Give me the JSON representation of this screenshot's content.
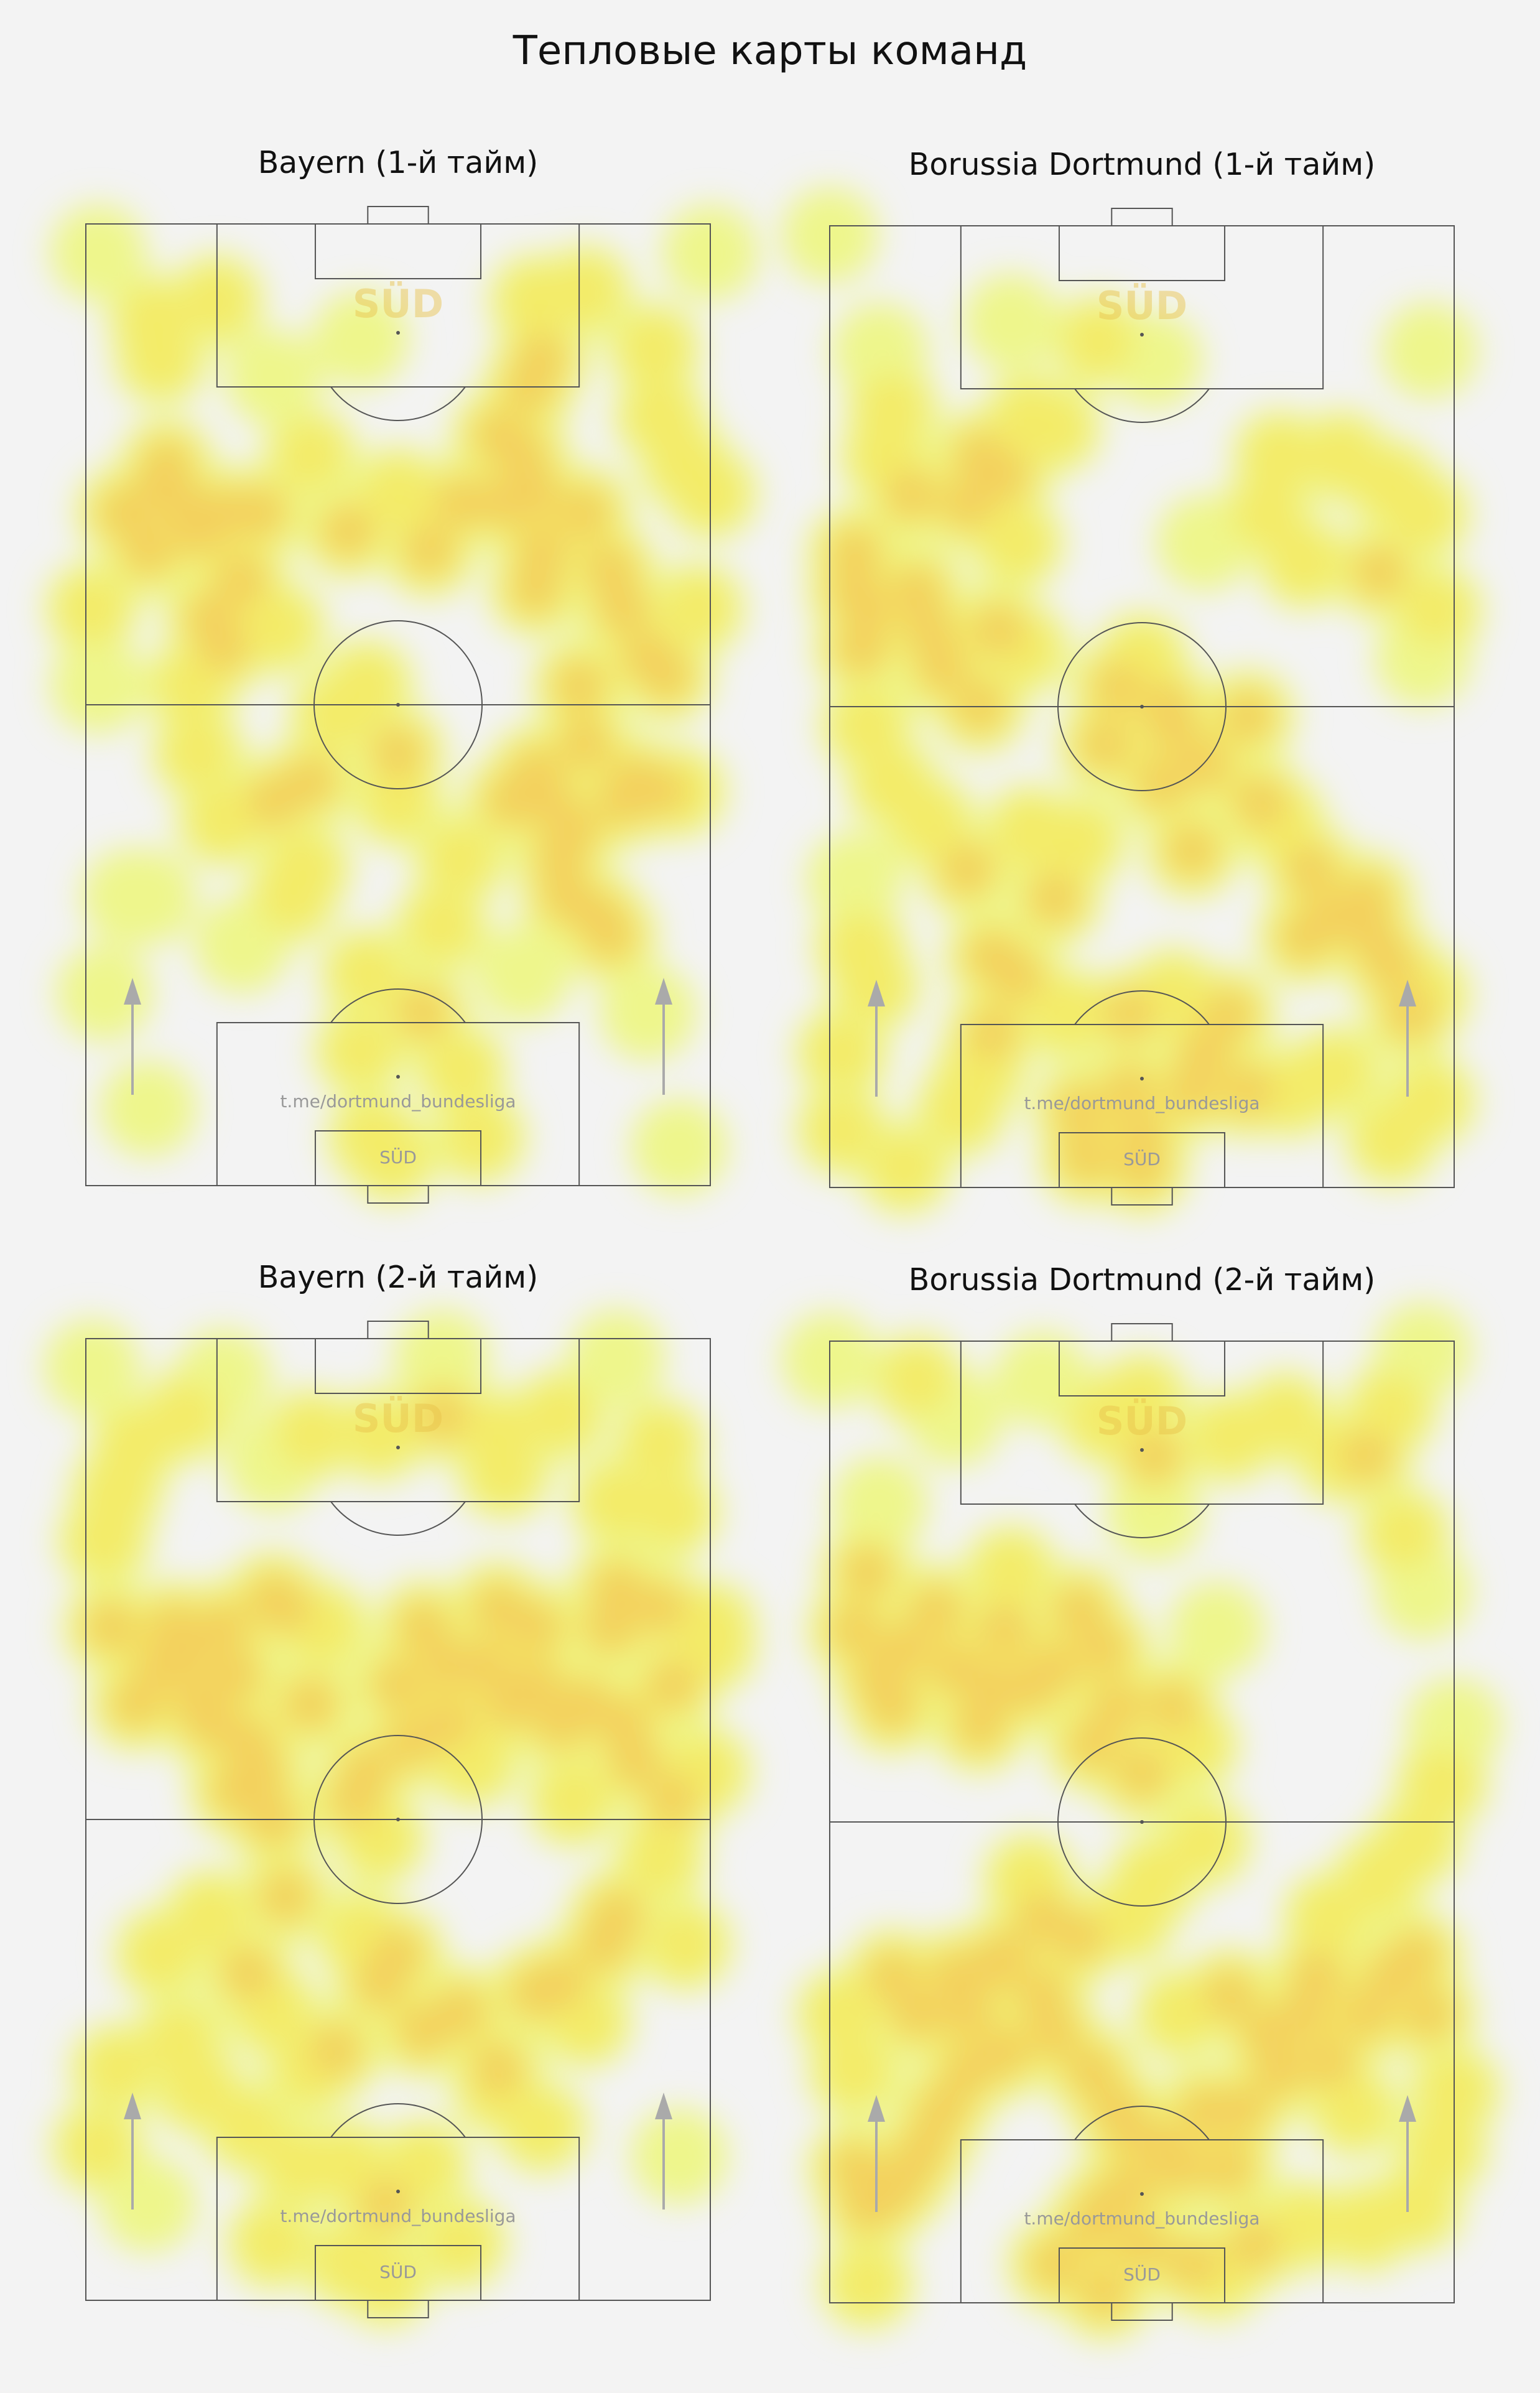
{
  "title": "Тепловые карты команд",
  "watermark": {
    "handle": "t.me/dortmund_bundesliga",
    "logo_text": "SÜD"
  },
  "colors": {
    "background": "#f3f3f3",
    "pitch_lines": "#555555",
    "heat_low": "#eef77a",
    "heat_mid": "#f7e24a",
    "heat_high": "#f3a04a",
    "arrow": "#aaaaaa",
    "watermark_text": "#999999"
  },
  "chart_data": [
    {
      "type": "heatmap",
      "title": "Bayern (1-й тайм)",
      "xlim": [
        0,
        100
      ],
      "ylim": [
        0,
        100
      ],
      "attack_direction": "up",
      "points": [
        [
          2,
          97
        ],
        [
          100,
          97
        ],
        [
          11,
          90
        ],
        [
          12,
          86
        ],
        [
          21,
          92
        ],
        [
          30,
          84
        ],
        [
          44,
          88
        ],
        [
          72,
          92
        ],
        [
          80,
          93
        ],
        [
          73,
          86
        ],
        [
          91,
          87
        ],
        [
          92,
          80
        ],
        [
          71,
          83
        ],
        [
          96,
          75
        ],
        [
          100,
          72
        ],
        [
          98,
          60
        ],
        [
          1,
          60
        ],
        [
          2,
          52
        ],
        [
          6,
          70
        ],
        [
          10,
          66
        ],
        [
          12,
          73
        ],
        [
          13,
          75
        ],
        [
          15,
          71
        ],
        [
          18,
          68
        ],
        [
          22,
          70
        ],
        [
          25,
          63
        ],
        [
          20,
          59
        ],
        [
          22,
          56
        ],
        [
          31,
          58
        ],
        [
          28,
          70
        ],
        [
          36,
          76
        ],
        [
          42,
          68
        ],
        [
          50,
          72
        ],
        [
          55,
          66
        ],
        [
          60,
          71
        ],
        [
          67,
          71
        ],
        [
          66,
          78
        ],
        [
          70,
          76
        ],
        [
          72,
          72
        ],
        [
          72,
          62
        ],
        [
          73,
          66
        ],
        [
          80,
          70
        ],
        [
          84,
          64
        ],
        [
          86,
          60
        ],
        [
          90,
          55
        ],
        [
          93,
          53
        ],
        [
          79,
          52
        ],
        [
          80,
          46
        ],
        [
          68,
          40
        ],
        [
          72,
          43
        ],
        [
          74,
          40
        ],
        [
          76,
          34
        ],
        [
          78,
          37
        ],
        [
          86,
          40
        ],
        [
          88,
          42
        ],
        [
          92,
          41
        ],
        [
          95,
          41
        ],
        [
          77,
          30
        ],
        [
          82,
          28
        ],
        [
          70,
          22
        ],
        [
          60,
          34
        ],
        [
          57,
          27
        ],
        [
          50,
          40
        ],
        [
          50,
          45
        ],
        [
          45,
          52
        ],
        [
          40,
          49
        ],
        [
          36,
          42
        ],
        [
          35,
          33
        ],
        [
          33,
          30
        ],
        [
          30,
          40
        ],
        [
          22,
          38
        ],
        [
          18,
          45
        ],
        [
          17,
          52
        ],
        [
          25,
          25
        ],
        [
          45,
          22
        ],
        [
          54,
          18
        ],
        [
          60,
          12
        ],
        [
          44,
          14
        ],
        [
          3,
          20
        ],
        [
          7,
          30
        ],
        [
          10,
          30
        ],
        [
          10,
          8
        ],
        [
          46,
          5
        ],
        [
          49,
          3
        ],
        [
          63,
          5
        ],
        [
          95,
          4
        ],
        [
          90,
          18
        ],
        [
          84,
          26
        ]
      ]
    },
    {
      "type": "heatmap",
      "title": "Borussia Dortmund (1-й тайм)",
      "xlim": [
        0,
        100
      ],
      "ylim": [
        0,
        100
      ],
      "attack_direction": "up",
      "points": [
        [
          0,
          99
        ],
        [
          29,
          90
        ],
        [
          43,
          88
        ],
        [
          52,
          86
        ],
        [
          96,
          87
        ],
        [
          8,
          87
        ],
        [
          10,
          81
        ],
        [
          9,
          76
        ],
        [
          13,
          72
        ],
        [
          24,
          76
        ],
        [
          28,
          74
        ],
        [
          32,
          80
        ],
        [
          36,
          79
        ],
        [
          72,
          76
        ],
        [
          82,
          76
        ],
        [
          70,
          70
        ],
        [
          90,
          73
        ],
        [
          95,
          70
        ],
        [
          60,
          67
        ],
        [
          4,
          66
        ],
        [
          4,
          62
        ],
        [
          6,
          60
        ],
        [
          5,
          56
        ],
        [
          14,
          62
        ],
        [
          16,
          58
        ],
        [
          18,
          54
        ],
        [
          24,
          50
        ],
        [
          27,
          58
        ],
        [
          31,
          56
        ],
        [
          30,
          67
        ],
        [
          22,
          71
        ],
        [
          76,
          65
        ],
        [
          88,
          64
        ],
        [
          95,
          55
        ],
        [
          97,
          60
        ],
        [
          55,
          48
        ],
        [
          44,
          46
        ],
        [
          46,
          52
        ],
        [
          50,
          55
        ],
        [
          54,
          50
        ],
        [
          53,
          42
        ],
        [
          58,
          35
        ],
        [
          60,
          44
        ],
        [
          67,
          49
        ],
        [
          69,
          40
        ],
        [
          72,
          38
        ],
        [
          77,
          33
        ],
        [
          76,
          26
        ],
        [
          80,
          28
        ],
        [
          86,
          30
        ],
        [
          87,
          26
        ],
        [
          90,
          23
        ],
        [
          93,
          18
        ],
        [
          95,
          20
        ],
        [
          96,
          9
        ],
        [
          90,
          5
        ],
        [
          81,
          12
        ],
        [
          74,
          10
        ],
        [
          64,
          18
        ],
        [
          67,
          10
        ],
        [
          60,
          14
        ],
        [
          48,
          10
        ],
        [
          40,
          8
        ],
        [
          41,
          3
        ],
        [
          50,
          5
        ],
        [
          38,
          18
        ],
        [
          30,
          22
        ],
        [
          26,
          16
        ],
        [
          24,
          12
        ],
        [
          21,
          8
        ],
        [
          26,
          24
        ],
        [
          22,
          33
        ],
        [
          16,
          38
        ],
        [
          10,
          42
        ],
        [
          6,
          48
        ],
        [
          4,
          32
        ],
        [
          5,
          25
        ],
        [
          7,
          21
        ],
        [
          2,
          14
        ],
        [
          2,
          6
        ],
        [
          12,
          2
        ],
        [
          40,
          36
        ],
        [
          32,
          37
        ],
        [
          36,
          30
        ],
        [
          48,
          18
        ],
        [
          55,
          20
        ],
        [
          58,
          10
        ],
        [
          50,
          2
        ]
      ]
    },
    {
      "type": "heatmap",
      "title": "Bayern (2-й тайм)",
      "xlim": [
        0,
        100
      ],
      "ylim": [
        0,
        100
      ],
      "attack_direction": "up",
      "points": [
        [
          1,
          97
        ],
        [
          8,
          89
        ],
        [
          16,
          92
        ],
        [
          22,
          96
        ],
        [
          30,
          87
        ],
        [
          36,
          90
        ],
        [
          47,
          90
        ],
        [
          57,
          92
        ],
        [
          57,
          98
        ],
        [
          66,
          90
        ],
        [
          67,
          86
        ],
        [
          76,
          92
        ],
        [
          85,
          98
        ],
        [
          92,
          89
        ],
        [
          94,
          82
        ],
        [
          85,
          83
        ],
        [
          85,
          74
        ],
        [
          84,
          70
        ],
        [
          92,
          72
        ],
        [
          94,
          64
        ],
        [
          99,
          55
        ],
        [
          100,
          70
        ],
        [
          3,
          79
        ],
        [
          5,
          84
        ],
        [
          4,
          70
        ],
        [
          8,
          62
        ],
        [
          12,
          66
        ],
        [
          14,
          70
        ],
        [
          16,
          67
        ],
        [
          18,
          62
        ],
        [
          20,
          60
        ],
        [
          22,
          70
        ],
        [
          24,
          65
        ],
        [
          26,
          58
        ],
        [
          24,
          53
        ],
        [
          28,
          55
        ],
        [
          30,
          73
        ],
        [
          32,
          72
        ],
        [
          36,
          62
        ],
        [
          38,
          70
        ],
        [
          45,
          55
        ],
        [
          47,
          48
        ],
        [
          43,
          52
        ],
        [
          52,
          58
        ],
        [
          50,
          64
        ],
        [
          54,
          70
        ],
        [
          58,
          66
        ],
        [
          58,
          60
        ],
        [
          62,
          56
        ],
        [
          64,
          66
        ],
        [
          66,
          72
        ],
        [
          68,
          62
        ],
        [
          72,
          70
        ],
        [
          72,
          64
        ],
        [
          76,
          60
        ],
        [
          78,
          52
        ],
        [
          80,
          62
        ],
        [
          86,
          60
        ],
        [
          88,
          56
        ],
        [
          92,
          46
        ],
        [
          94,
          52
        ],
        [
          85,
          40
        ],
        [
          83,
          37
        ],
        [
          76,
          33
        ],
        [
          80,
          29
        ],
        [
          72,
          32
        ],
        [
          66,
          24
        ],
        [
          60,
          30
        ],
        [
          54,
          28
        ],
        [
          50,
          36
        ],
        [
          47,
          33
        ],
        [
          44,
          38
        ],
        [
          40,
          26
        ],
        [
          36,
          24
        ],
        [
          30,
          30
        ],
        [
          26,
          34
        ],
        [
          32,
          42
        ],
        [
          30,
          50
        ],
        [
          20,
          40
        ],
        [
          12,
          36
        ],
        [
          15,
          27
        ],
        [
          18,
          22
        ],
        [
          26,
          18
        ],
        [
          34,
          14
        ],
        [
          42,
          14
        ],
        [
          48,
          10
        ],
        [
          54,
          14
        ],
        [
          60,
          6
        ],
        [
          48,
          2
        ],
        [
          42,
          4
        ],
        [
          66,
          22
        ],
        [
          73,
          18
        ],
        [
          95,
          15
        ],
        [
          100,
          68
        ],
        [
          5,
          24
        ],
        [
          2,
          16
        ],
        [
          10,
          10
        ],
        [
          30,
          6
        ],
        [
          96,
          37
        ]
      ]
    },
    {
      "type": "heatmap",
      "title": "Borussia Dortmund (2-й тайм)",
      "xlim": [
        0,
        100
      ],
      "ylim": [
        0,
        100
      ],
      "attack_direction": "up",
      "points": [
        [
          0,
          98
        ],
        [
          14,
          96
        ],
        [
          20,
          92
        ],
        [
          34,
          96
        ],
        [
          44,
          92
        ],
        [
          50,
          94
        ],
        [
          52,
          88
        ],
        [
          52,
          82
        ],
        [
          64,
          90
        ],
        [
          73,
          92
        ],
        [
          82,
          88
        ],
        [
          95,
          99
        ],
        [
          90,
          93
        ],
        [
          86,
          88
        ],
        [
          92,
          80
        ],
        [
          95,
          74
        ],
        [
          8,
          83
        ],
        [
          6,
          76
        ],
        [
          4,
          70
        ],
        [
          8,
          65
        ],
        [
          10,
          62
        ],
        [
          12,
          68
        ],
        [
          17,
          72
        ],
        [
          20,
          66
        ],
        [
          24,
          60
        ],
        [
          26,
          64
        ],
        [
          28,
          70
        ],
        [
          29,
          76
        ],
        [
          32,
          64
        ],
        [
          36,
          66
        ],
        [
          40,
          72
        ],
        [
          44,
          68
        ],
        [
          46,
          62
        ],
        [
          42,
          58
        ],
        [
          50,
          55
        ],
        [
          55,
          62
        ],
        [
          58,
          58
        ],
        [
          62,
          70
        ],
        [
          60,
          48
        ],
        [
          52,
          44
        ],
        [
          48,
          40
        ],
        [
          40,
          38
        ],
        [
          34,
          40
        ],
        [
          32,
          44
        ],
        [
          34,
          32
        ],
        [
          28,
          26
        ],
        [
          22,
          24
        ],
        [
          18,
          20
        ],
        [
          15,
          16
        ],
        [
          12,
          13
        ],
        [
          9,
          11
        ],
        [
          6,
          10
        ],
        [
          4,
          14
        ],
        [
          4,
          24
        ],
        [
          2,
          30
        ],
        [
          10,
          34
        ],
        [
          14,
          30
        ],
        [
          20,
          34
        ],
        [
          22,
          30
        ],
        [
          26,
          35
        ],
        [
          28,
          36
        ],
        [
          36,
          28
        ],
        [
          42,
          24
        ],
        [
          46,
          20
        ],
        [
          48,
          18
        ],
        [
          48,
          12
        ],
        [
          44,
          10
        ],
        [
          42,
          8
        ],
        [
          50,
          6
        ],
        [
          58,
          4
        ],
        [
          54,
          16
        ],
        [
          56,
          14
        ],
        [
          60,
          20
        ],
        [
          64,
          14
        ],
        [
          66,
          20
        ],
        [
          70,
          28
        ],
        [
          72,
          24
        ],
        [
          76,
          30
        ],
        [
          80,
          25
        ],
        [
          84,
          20
        ],
        [
          86,
          30
        ],
        [
          90,
          34
        ],
        [
          94,
          36
        ],
        [
          96,
          30
        ],
        [
          100,
          22
        ],
        [
          98,
          16
        ],
        [
          94,
          10
        ],
        [
          86,
          8
        ],
        [
          76,
          8
        ],
        [
          68,
          6
        ],
        [
          62,
          3
        ],
        [
          44,
          1
        ],
        [
          36,
          4
        ],
        [
          6,
          2
        ],
        [
          100,
          60
        ],
        [
          98,
          54
        ],
        [
          94,
          48
        ],
        [
          88,
          44
        ],
        [
          80,
          40
        ],
        [
          78,
          34
        ],
        [
          64,
          32
        ],
        [
          56,
          30
        ]
      ]
    }
  ]
}
